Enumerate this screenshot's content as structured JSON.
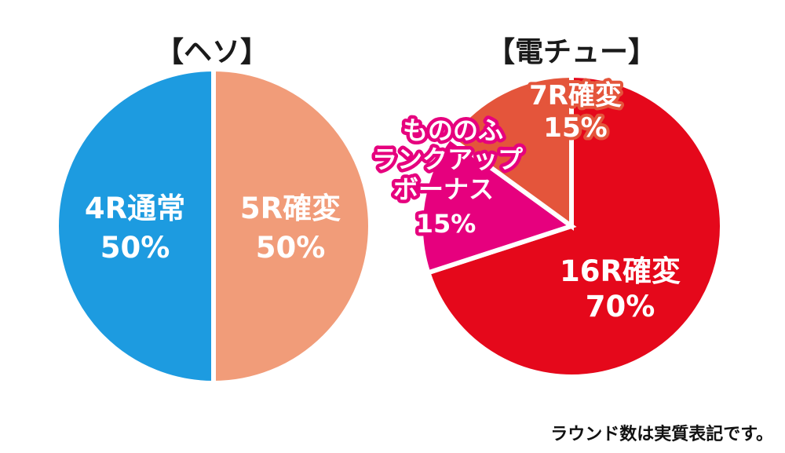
{
  "chart_data": [
    {
      "type": "pie",
      "title": "【ヘソ】",
      "slices": [
        {
          "label_lines": [
            "5R確変",
            "50%"
          ],
          "value": 50,
          "color": "#f19c79"
        },
        {
          "label_lines": [
            "4R通常",
            "50%"
          ],
          "value": 50,
          "color": "#1d9be0"
        }
      ]
    },
    {
      "type": "pie",
      "title": "【電チュー】",
      "slices": [
        {
          "label_lines": [
            "16R確変",
            "70%"
          ],
          "value": 70,
          "color": "#e5081b"
        },
        {
          "label_lines": [
            "もののふ",
            "ランクアップ",
            "ボーナス",
            "15%"
          ],
          "value": 15,
          "color": "#e6007e"
        },
        {
          "label_lines": [
            "7R確変",
            "15%"
          ],
          "value": 15,
          "color": "#e4553b"
        }
      ]
    }
  ],
  "footnote": "ラウンド数は実質表記です。"
}
